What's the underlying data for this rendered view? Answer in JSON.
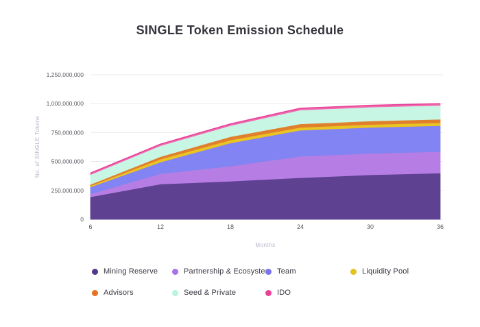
{
  "title": "SINGLE Token Emission Schedule",
  "chart_data": {
    "type": "area",
    "stacked": true,
    "title": "SINGLE Token Emission Schedule",
    "xlabel": "Months",
    "ylabel": "No. of SINGLE Tokens",
    "x": [
      6,
      12,
      18,
      24,
      30,
      36
    ],
    "ylim": [
      0,
      1250000000
    ],
    "y_ticks": [
      0,
      250000000,
      500000000,
      750000000,
      1000000000,
      1250000000
    ],
    "y_tick_labels": [
      "0",
      "250,000,000",
      "500,000,000",
      "750,000,000",
      "1,000,000,000",
      "1,250,000,000"
    ],
    "grid": "horizontal",
    "legend_position": "bottom",
    "series": [
      {
        "name": "Mining Reserve",
        "color": "#5E4191",
        "dot_color": "#53398D",
        "values": [
          195000000,
          305000000,
          330000000,
          360000000,
          385000000,
          400000000
        ]
      },
      {
        "name": "Partnership & Ecosystem",
        "color": "#B67EE5",
        "dot_color": "#A873E8",
        "values": [
          25000000,
          90000000,
          130000000,
          185000000,
          185000000,
          185000000
        ]
      },
      {
        "name": "Team",
        "color": "#8184F2",
        "dot_color": "#7D74EE",
        "values": [
          60000000,
          100000000,
          200000000,
          225000000,
          225000000,
          225000000
        ]
      },
      {
        "name": "Liquidity Pool",
        "color": "#EAC423",
        "dot_color": "#E3C219",
        "values": [
          10000000,
          25000000,
          25000000,
          25000000,
          25000000,
          25000000
        ]
      },
      {
        "name": "Advisors",
        "color": "#E0802D",
        "dot_color": "#E8721C",
        "values": [
          12000000,
          22000000,
          30000000,
          30000000,
          30000000,
          30000000
        ]
      },
      {
        "name": "Seed & Private",
        "color": "#C7F6E5",
        "dot_color": "#B8F4DE",
        "values": [
          85000000,
          95000000,
          95000000,
          120000000,
          120000000,
          120000000
        ]
      },
      {
        "name": "IDO",
        "color": "#F06AAE",
        "line_color": "#E8439A",
        "dot_color": "#E84297",
        "values": [
          13000000,
          13000000,
          15000000,
          15000000,
          15000000,
          15000000
        ]
      }
    ],
    "style": {
      "grid_color": "#e9e9ec",
      "tick_color": "#55555e",
      "axis_title_color": "#b9b3cb"
    }
  }
}
